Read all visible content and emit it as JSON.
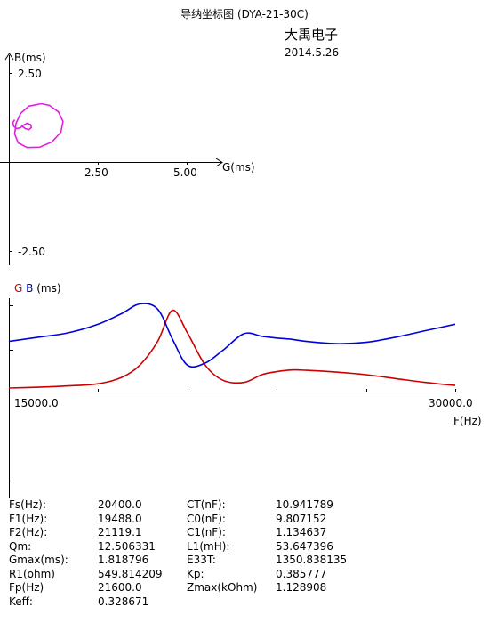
{
  "header": {
    "title": "导纳坐标图  (DYA-21-30C)",
    "company": "大禹电子",
    "date": "2014.5.26"
  },
  "chart_data": [
    {
      "type": "scatter",
      "name": "admittance-circle",
      "xlabel": "G(ms)",
      "ylabel": "B(ms)",
      "x_ticks": [
        "2.50",
        "5.00"
      ],
      "y_ticks": [
        "2.50",
        "-2.50"
      ],
      "xlim": [
        -0.2,
        5.8
      ],
      "ylim": [
        -2.85,
        2.85
      ],
      "color": "#e020e0",
      "points_gb": [
        [
          0.9,
          1.65
        ],
        [
          0.55,
          1.58
        ],
        [
          0.32,
          1.38
        ],
        [
          0.19,
          1.1
        ],
        [
          0.15,
          0.8
        ],
        [
          0.25,
          0.55
        ],
        [
          0.5,
          0.42
        ],
        [
          0.85,
          0.43
        ],
        [
          1.2,
          0.58
        ],
        [
          1.45,
          0.85
        ],
        [
          1.51,
          1.15
        ],
        [
          1.38,
          1.42
        ],
        [
          1.13,
          1.6
        ],
        [
          0.9,
          1.65
        ]
      ],
      "inner_loop_gb": [
        [
          0.35,
          1.02
        ],
        [
          0.45,
          0.95
        ],
        [
          0.55,
          0.92
        ],
        [
          0.62,
          0.98
        ],
        [
          0.6,
          1.06
        ],
        [
          0.5,
          1.1
        ],
        [
          0.4,
          1.05
        ],
        [
          0.3,
          0.97
        ],
        [
          0.2,
          0.95
        ],
        [
          0.12,
          1.02
        ],
        [
          0.1,
          1.12
        ],
        [
          0.15,
          1.2
        ]
      ]
    },
    {
      "type": "line",
      "name": "frequency-sweep",
      "title": "G B (ms)",
      "xlabel": "F(Hz)",
      "x_ticks": [
        "15000.0",
        "30000.0"
      ],
      "xlim": [
        15000,
        30000
      ],
      "ylim": [
        0,
        2.0
      ],
      "x": [
        15000,
        16000,
        17000,
        18000,
        18800,
        19400,
        20000,
        20500,
        21000,
        21600,
        22200,
        22900,
        23500,
        24000,
        24500,
        25000,
        26000,
        27000,
        28000,
        29000,
        30000
      ],
      "series": [
        {
          "name": "G",
          "color": "#cc0000",
          "values": [
            0.02,
            0.04,
            0.07,
            0.12,
            0.27,
            0.55,
            1.1,
            1.82,
            1.3,
            0.55,
            0.2,
            0.15,
            0.33,
            0.4,
            0.44,
            0.43,
            0.39,
            0.33,
            0.24,
            0.15,
            0.08
          ]
        },
        {
          "name": "B",
          "color": "#0000dd",
          "values": [
            1.1,
            1.2,
            1.3,
            1.5,
            1.75,
            1.97,
            1.85,
            1.15,
            0.55,
            0.6,
            0.9,
            1.28,
            1.22,
            1.18,
            1.15,
            1.1,
            1.05,
            1.08,
            1.2,
            1.35,
            1.5
          ]
        }
      ]
    }
  ],
  "params": [
    [
      "Fs(Hz):",
      "20400.0",
      "CT(nF):",
      "10.941789"
    ],
    [
      "F1(Hz):",
      "19488.0",
      "C0(nF):",
      "9.807152"
    ],
    [
      "F2(Hz):",
      "21119.1",
      "C1(nF):",
      "1.134637"
    ],
    [
      "Qm:",
      "12.506331",
      "L1(mH):",
      "53.647396"
    ],
    [
      "Gmax(ms):",
      "1.818796",
      "E33T:",
      "1350.838135"
    ],
    [
      "R1(ohm)",
      "549.814209",
      "Kp:",
      "0.385777"
    ],
    [
      "Fp(Hz)",
      "21600.0",
      "Zmax(kOhm)",
      "1.128908"
    ],
    [
      "Keff:",
      "0.328671",
      "",
      ""
    ]
  ]
}
